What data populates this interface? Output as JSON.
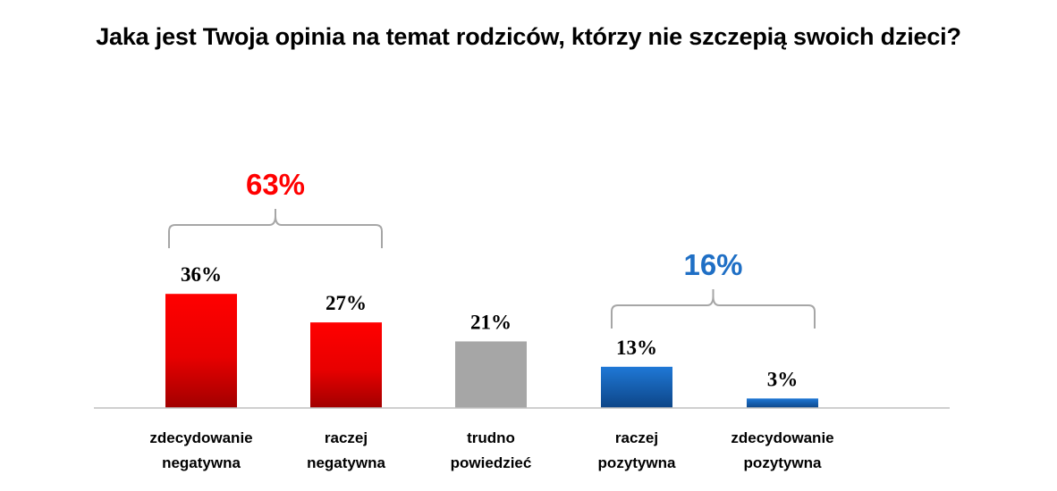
{
  "chart_data": {
    "type": "bar",
    "title": "Jaka jest Twoja opinia na temat rodziców, którzy nie szczepią swoich dzieci?",
    "categories": [
      [
        "zdecydowanie",
        "negatywna"
      ],
      [
        "raczej",
        "negatywna"
      ],
      [
        "trudno",
        "powiedzieć"
      ],
      [
        "raczej",
        "pozytywna"
      ],
      [
        "zdecydowanie",
        "pozytywna"
      ]
    ],
    "values": [
      36,
      27,
      21,
      13,
      3
    ],
    "value_labels": [
      "36%",
      "27%",
      "21%",
      "13%",
      "3%"
    ],
    "colors": [
      "#e30613",
      "#e30613",
      "#a6a6a6",
      "#1768c4",
      "#1768c4"
    ],
    "ylim": [
      0,
      40
    ],
    "grid": false,
    "groups": [
      {
        "label": "63%",
        "from": 0,
        "to": 1,
        "color": "#ff0000"
      },
      {
        "label": "16%",
        "from": 3,
        "to": 4,
        "color": "#1f6fc5"
      }
    ]
  }
}
